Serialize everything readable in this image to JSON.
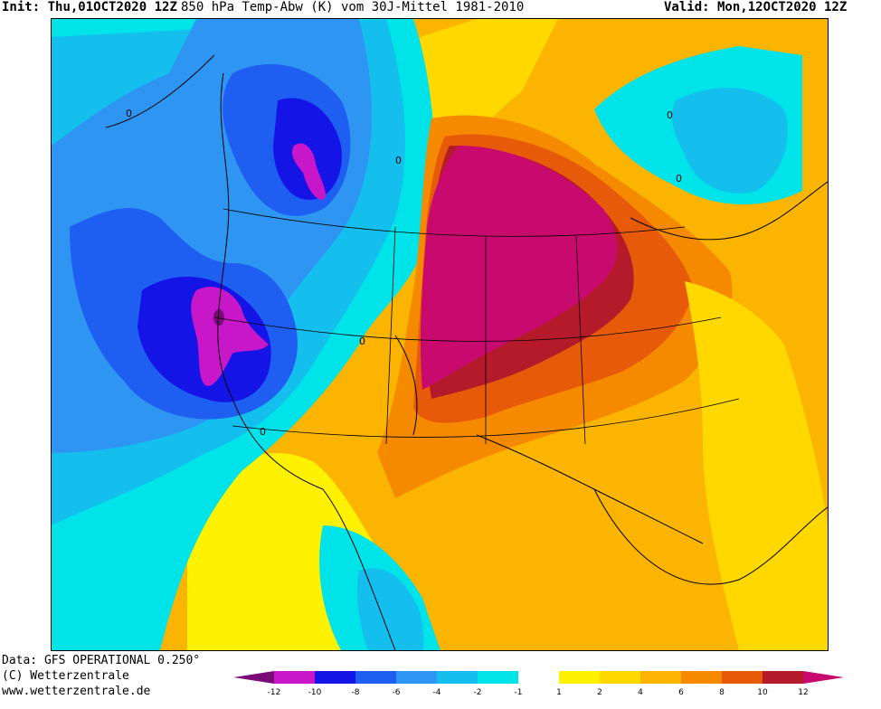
{
  "header": {
    "init_label": "Init:",
    "init_value": "Thu,01OCT2020 12Z",
    "title": "850 hPa Temp-Abw (K) vom 30J-Mittel 1981-2010",
    "valid": "Valid: Mon,12OCT2020 12Z"
  },
  "footer": {
    "data_source": "Data: GFS OPERATIONAL 0.250°",
    "copyright": "(C) Wetterzentrale",
    "website": "www.wetterzentrale.de"
  },
  "colors": {
    "c_m14": "#7a0a78",
    "c_m12": "#c817c9",
    "c_m10": "#1414e6",
    "c_m8": "#1e5ef0",
    "c_m6": "#2e96f2",
    "c_m4": "#14bfee",
    "c_m2": "#00e3e8",
    "c_0": "#ffffff",
    "c_1": "#fff200",
    "c_2": "#ffd800",
    "c_4": "#fbb400",
    "c_6": "#f58a00",
    "c_8": "#e65a0a",
    "c_10": "#b41a2a",
    "c_12": "#c80a6e"
  },
  "legend": {
    "tick_labels": [
      "-12",
      "-10",
      "-8",
      "-6",
      "-4",
      "-2",
      "-1",
      "1",
      "2",
      "4",
      "6",
      "8",
      "10",
      "12"
    ]
  },
  "map": {
    "contour_labels": [
      "0",
      "0",
      "0",
      "0",
      "0",
      "0"
    ]
  }
}
